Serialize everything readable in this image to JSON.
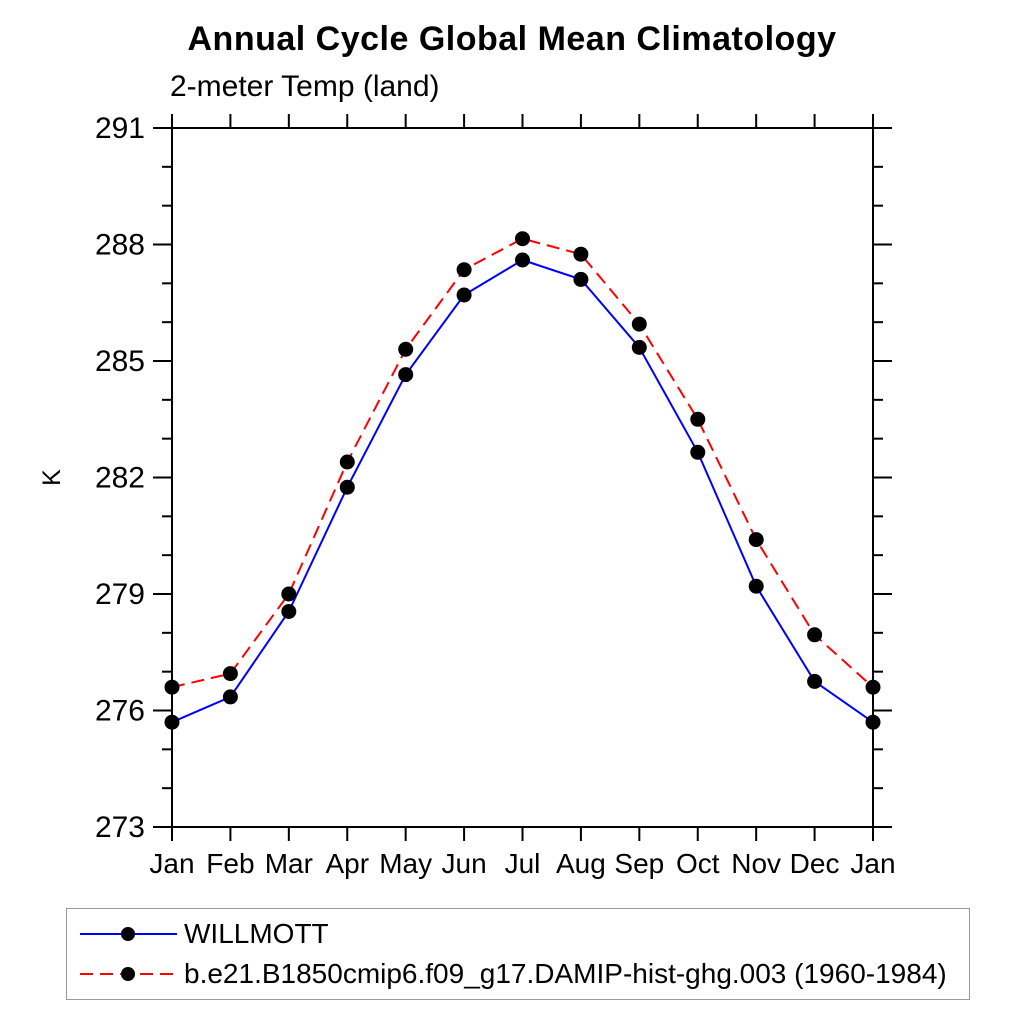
{
  "title": "Annual Cycle Global Mean Climatology",
  "subtitle": "2-meter Temp (land)",
  "ylabel": "K",
  "colors": {
    "series1": "#0000ff",
    "series2": "#ff0000",
    "marker": "#000000",
    "axis": "#000000",
    "legend_border": "#999999"
  },
  "chart_data": {
    "type": "line",
    "title": "Annual Cycle Global Mean Climatology",
    "subtitle": "2-meter Temp (land)",
    "xlabel": "",
    "ylabel": "K",
    "categories": [
      "Jan",
      "Feb",
      "Mar",
      "Apr",
      "May",
      "Jun",
      "Jul",
      "Aug",
      "Sep",
      "Oct",
      "Nov",
      "Dec",
      "Jan"
    ],
    "ylim": [
      273,
      291
    ],
    "yticks": [
      273,
      276,
      279,
      282,
      285,
      288,
      291
    ],
    "minor_tick_step": 1,
    "grid": false,
    "legend_position": "bottom",
    "series": [
      {
        "name": "WILLMOTT",
        "color": "#0000ff",
        "style": "solid",
        "marker": "circle",
        "marker_color": "#000000",
        "values": [
          275.7,
          276.35,
          278.55,
          281.75,
          284.65,
          286.7,
          287.6,
          287.1,
          285.35,
          282.65,
          279.2,
          276.75,
          275.7
        ]
      },
      {
        "name": "b.e21.B1850cmip6.f09_g17.DAMIP-hist-ghg.003 (1960-1984)",
        "color": "#ff0000",
        "style": "dashed",
        "marker": "circle",
        "marker_color": "#000000",
        "values": [
          276.6,
          276.95,
          279.0,
          282.4,
          285.3,
          287.35,
          288.15,
          287.75,
          285.95,
          283.5,
          280.4,
          277.95,
          276.6
        ]
      }
    ]
  }
}
